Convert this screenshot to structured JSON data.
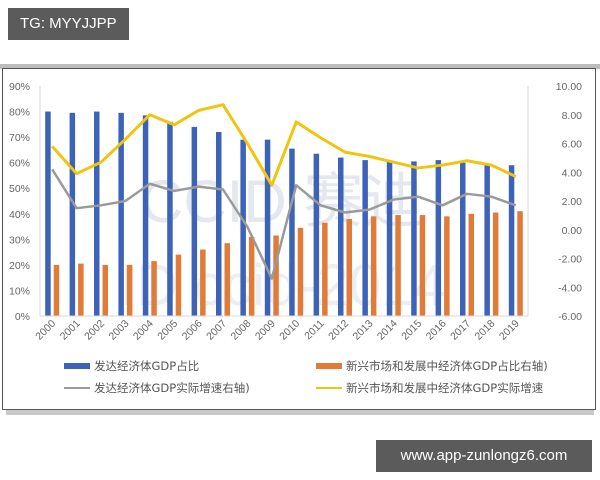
{
  "header": {
    "tag": "TG: MYYJJPP"
  },
  "footer": {
    "url": "www.app-zunlongz6.com"
  },
  "watermark": {
    "line1": "CCID 赛迪",
    "line2": "ID ccid-2014"
  },
  "colors": {
    "developed_share": "#3d63b8",
    "emerging_share": "#e07b39",
    "developed_growth": "#9a9a9a",
    "emerging_growth": "#f1c40f"
  },
  "legend": [
    {
      "label": "发达经济体GDP占比",
      "type": "bar",
      "color": "#3d63b8"
    },
    {
      "label": "新兴市场和发展中经济体GDP占比右轴)",
      "type": "bar",
      "color": "#e07b39"
    },
    {
      "label": "发达经济体GDP实际增速右轴)",
      "type": "line",
      "color": "#9a9a9a"
    },
    {
      "label": "新兴市场和发展中经济体GDP实际增速",
      "type": "line",
      "color": "#f1c40f"
    }
  ],
  "chart_data": {
    "type": "bar",
    "title": "",
    "xlabel": "",
    "ylabel": "",
    "categories": [
      "2000",
      "2001",
      "2002",
      "2003",
      "2004",
      "2005",
      "2006",
      "2007",
      "2008",
      "2009",
      "2010",
      "2011",
      "2012",
      "2013",
      "2014",
      "2015",
      "2016",
      "2017",
      "2018",
      "2019"
    ],
    "left_axis": {
      "ylim": [
        0,
        90
      ],
      "ticks": [
        "0%",
        "10%",
        "20%",
        "30%",
        "40%",
        "50%",
        "60%",
        "70%",
        "80%",
        "90%"
      ]
    },
    "right_axis": {
      "ylim": [
        -6,
        10
      ],
      "ticks": [
        "-6.00",
        "-4.00",
        "-2.00",
        "0.00",
        "2.00",
        "4.00",
        "6.00",
        "8.00",
        "10.00"
      ]
    },
    "grid": false,
    "legend_position": "bottom",
    "series": [
      {
        "name": "发达经济体GDP占比",
        "type": "bar",
        "axis": "left",
        "unit": "%",
        "values": [
          80,
          79.5,
          80,
          79.5,
          78.5,
          76,
          74,
          72,
          69,
          69,
          65.5,
          63.5,
          62,
          61,
          60.5,
          60.5,
          61,
          60,
          59,
          59
        ]
      },
      {
        "name": "新兴市场和发展中经济体GDP占比右轴)",
        "type": "bar",
        "axis": "left",
        "unit": "%",
        "values": [
          20,
          20.5,
          20,
          20,
          21.5,
          24,
          26,
          28.5,
          31,
          31.5,
          34.5,
          36.5,
          38,
          39,
          39.5,
          39.5,
          39,
          40,
          40.5,
          41
        ]
      },
      {
        "name": "发达经济体GDP实际增速右轴)",
        "type": "line",
        "axis": "right",
        "values": [
          4.2,
          1.5,
          1.7,
          2.0,
          3.2,
          2.7,
          3.0,
          2.8,
          0.2,
          -3.4,
          3.1,
          1.7,
          1.2,
          1.4,
          2.1,
          2.3,
          1.7,
          2.5,
          2.3,
          1.7
        ]
      },
      {
        "name": "新兴市场和发展中经济体GDP实际增速",
        "type": "line",
        "axis": "right",
        "values": [
          5.8,
          3.9,
          4.7,
          6.3,
          8.0,
          7.3,
          8.3,
          8.7,
          6.0,
          3.1,
          7.5,
          6.4,
          5.4,
          5.1,
          4.7,
          4.3,
          4.5,
          4.8,
          4.5,
          3.7
        ]
      }
    ]
  }
}
